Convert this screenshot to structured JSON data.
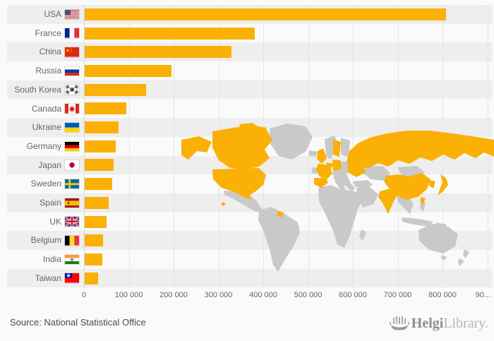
{
  "chart_data": {
    "type": "bar",
    "orientation": "horizontal",
    "title": "",
    "xlabel": "",
    "ylabel": "",
    "categories": [
      "USA",
      "France",
      "China",
      "Russia",
      "South Korea",
      "Canada",
      "Ukraine",
      "Germany",
      "Japan",
      "Sweden",
      "Spain",
      "UK",
      "Belgium",
      "India",
      "Taiwan"
    ],
    "values": [
      808000,
      381000,
      329000,
      195000,
      138000,
      94000,
      77000,
      71000,
      66000,
      63000,
      55000,
      50000,
      42000,
      41000,
      31000
    ],
    "flags": [
      "usa",
      "france",
      "china",
      "russia",
      "south-korea",
      "canada",
      "ukraine",
      "germany",
      "japan",
      "sweden",
      "spain",
      "uk",
      "belgium",
      "india",
      "taiwan"
    ],
    "xlim": [
      0,
      900000
    ],
    "x_tick_labels": [
      "0",
      "100 000",
      "200 000",
      "300 000",
      "400 000",
      "500 000",
      "600 000",
      "700 000",
      "800 000",
      "90..."
    ],
    "grid": true,
    "legend": "none",
    "row_striping": true,
    "map_highlighted_countries": [
      "USA",
      "Canada",
      "Russia",
      "China",
      "India",
      "Japan",
      "South Korea",
      "Taiwan",
      "France",
      "Spain",
      "UK",
      "Germany",
      "Belgium",
      "Sweden",
      "Ukraine",
      "French Guiana",
      "Hawaii"
    ]
  },
  "footer": {
    "source": "Source: National Statistical Office",
    "logo_helgi": "Helgi",
    "logo_library": "Library."
  },
  "colors": {
    "bar": "#fab005",
    "map_land": "#c9c9c9",
    "map_highlight": "#fab005",
    "stripe": "#eeeeee",
    "axis_line": "#ccd6eb",
    "background": "#fafafa"
  }
}
